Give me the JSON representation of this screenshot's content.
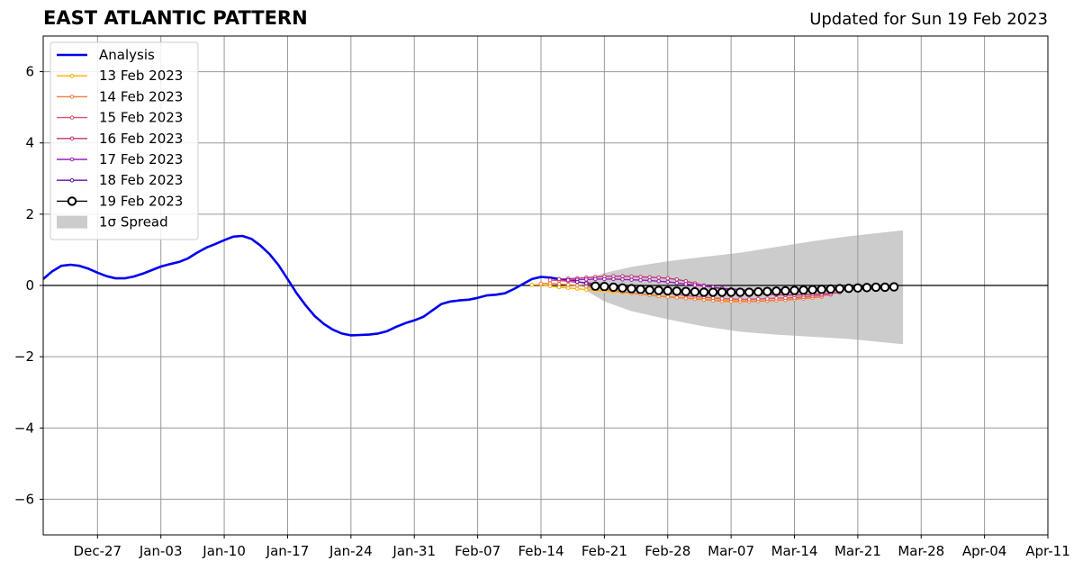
{
  "title": "EAST ATLANTIC PATTERN",
  "subtitle": "Updated for Sun 19 Feb 2023",
  "chart_data": {
    "type": "line",
    "xaxis": {
      "tick_labels": [
        "Dec-27",
        "Jan-03",
        "Jan-10",
        "Jan-17",
        "Jan-24",
        "Jan-31",
        "Feb-07",
        "Feb-14",
        "Feb-21",
        "Feb-28",
        "Mar-07",
        "Mar-14",
        "Mar-21",
        "Mar-28",
        "Apr-04",
        "Apr-11"
      ],
      "range": [
        "2022-12-21",
        "2023-04-11"
      ]
    },
    "yaxis": {
      "tick_labels": [
        "−6",
        "−4",
        "−2",
        "0",
        "2",
        "4",
        "6"
      ],
      "tick_values": [
        -6,
        -4,
        -2,
        0,
        2,
        4,
        6
      ],
      "range": [
        -7,
        7
      ]
    },
    "grid": true,
    "zero_line": true,
    "legend_position": "top-left",
    "series": [
      {
        "name": "Analysis",
        "color": "#0000ee",
        "style": "thick-line",
        "marker": "none",
        "points": [
          [
            "2022-12-21",
            0.18
          ],
          [
            "2022-12-22",
            0.4
          ],
          [
            "2022-12-23",
            0.55
          ],
          [
            "2022-12-24",
            0.58
          ],
          [
            "2022-12-25",
            0.55
          ],
          [
            "2022-12-26",
            0.47
          ],
          [
            "2022-12-27",
            0.36
          ],
          [
            "2022-12-28",
            0.26
          ],
          [
            "2022-12-29",
            0.2
          ],
          [
            "2022-12-30",
            0.2
          ],
          [
            "2022-12-31",
            0.25
          ],
          [
            "2023-01-01",
            0.33
          ],
          [
            "2023-01-02",
            0.43
          ],
          [
            "2023-01-03",
            0.53
          ],
          [
            "2023-01-04",
            0.6
          ],
          [
            "2023-01-05",
            0.66
          ],
          [
            "2023-01-06",
            0.76
          ],
          [
            "2023-01-07",
            0.92
          ],
          [
            "2023-01-08",
            1.06
          ],
          [
            "2023-01-09",
            1.16
          ],
          [
            "2023-01-10",
            1.27
          ],
          [
            "2023-01-11",
            1.37
          ],
          [
            "2023-01-12",
            1.39
          ],
          [
            "2023-01-13",
            1.31
          ],
          [
            "2023-01-14",
            1.12
          ],
          [
            "2023-01-15",
            0.88
          ],
          [
            "2023-01-16",
            0.57
          ],
          [
            "2023-01-17",
            0.18
          ],
          [
            "2023-01-18",
            -0.22
          ],
          [
            "2023-01-19",
            -0.56
          ],
          [
            "2023-01-20",
            -0.86
          ],
          [
            "2023-01-21",
            -1.08
          ],
          [
            "2023-01-22",
            -1.24
          ],
          [
            "2023-01-23",
            -1.35
          ],
          [
            "2023-01-24",
            -1.4
          ],
          [
            "2023-01-25",
            -1.39
          ],
          [
            "2023-01-26",
            -1.38
          ],
          [
            "2023-01-27",
            -1.35
          ],
          [
            "2023-01-28",
            -1.28
          ],
          [
            "2023-01-29",
            -1.16
          ],
          [
            "2023-01-30",
            -1.06
          ],
          [
            "2023-01-31",
            -0.98
          ],
          [
            "2023-02-01",
            -0.88
          ],
          [
            "2023-02-02",
            -0.7
          ],
          [
            "2023-02-03",
            -0.52
          ],
          [
            "2023-02-04",
            -0.45
          ],
          [
            "2023-02-05",
            -0.42
          ],
          [
            "2023-02-06",
            -0.4
          ],
          [
            "2023-02-07",
            -0.35
          ],
          [
            "2023-02-08",
            -0.28
          ],
          [
            "2023-02-09",
            -0.26
          ],
          [
            "2023-02-10",
            -0.22
          ],
          [
            "2023-02-11",
            -0.1
          ],
          [
            "2023-02-12",
            0.04
          ],
          [
            "2023-02-13",
            0.18
          ],
          [
            "2023-02-14",
            0.24
          ],
          [
            "2023-02-15",
            0.22
          ],
          [
            "2023-02-16",
            0.18
          ],
          [
            "2023-02-17",
            0.14
          ],
          [
            "2023-02-18",
            0.1
          ]
        ]
      },
      {
        "name": "13 Feb 2023",
        "color": "#ffb000",
        "style": "thin-line",
        "marker": "small-dot",
        "start": "2023-02-13",
        "values": [
          0.02,
          0.02,
          -0.02,
          -0.05,
          -0.07,
          -0.09,
          -0.12,
          -0.14,
          -0.16,
          -0.18,
          -0.2,
          -0.22,
          -0.24,
          -0.27,
          -0.29,
          -0.31,
          -0.33,
          -0.35,
          -0.37,
          -0.38,
          -0.4,
          -0.41,
          -0.42,
          -0.43,
          -0.44,
          -0.44,
          -0.43,
          -0.42,
          -0.4,
          -0.38,
          -0.36,
          -0.33
        ]
      },
      {
        "name": "14 Feb 2023",
        "color": "#f07f3a",
        "style": "thin-line",
        "marker": "small-dot",
        "start": "2023-02-14",
        "values": [
          0.05,
          0.06,
          0.04,
          0.02,
          0.0,
          -0.03,
          -0.06,
          -0.1,
          -0.14,
          -0.18,
          -0.21,
          -0.24,
          -0.27,
          -0.3,
          -0.32,
          -0.34,
          -0.36,
          -0.38,
          -0.4,
          -0.42,
          -0.44,
          -0.45,
          -0.45,
          -0.45,
          -0.44,
          -0.43,
          -0.42,
          -0.41,
          -0.39,
          -0.37,
          -0.35,
          -0.32
        ]
      },
      {
        "name": "15 Feb 2023",
        "color": "#e0506a",
        "style": "thin-line",
        "marker": "small-dot",
        "start": "2023-02-15",
        "values": [
          0.15,
          0.14,
          0.12,
          0.1,
          0.08,
          0.05,
          0.02,
          -0.02,
          -0.06,
          -0.1,
          -0.13,
          -0.16,
          -0.19,
          -0.22,
          -0.25,
          -0.28,
          -0.31,
          -0.33,
          -0.35,
          -0.37,
          -0.38,
          -0.39,
          -0.39,
          -0.38,
          -0.37,
          -0.36,
          -0.35,
          -0.34,
          -0.32,
          -0.3,
          -0.28,
          -0.26
        ]
      },
      {
        "name": "16 Feb 2023",
        "color": "#c0347a",
        "style": "thin-line",
        "marker": "small-dot",
        "start": "2023-02-16",
        "values": [
          0.18,
          0.19,
          0.2,
          0.22,
          0.24,
          0.25,
          0.26,
          0.26,
          0.25,
          0.24,
          0.23,
          0.22,
          0.2,
          0.17,
          0.12,
          0.06,
          0.0,
          -0.05,
          -0.1,
          -0.14,
          -0.18,
          -0.21,
          -0.23,
          -0.25,
          -0.26,
          -0.27,
          -0.27,
          -0.26,
          -0.25,
          -0.24,
          -0.22,
          -0.2
        ]
      },
      {
        "name": "17 Feb 2023",
        "color": "#9a1fb5",
        "style": "thin-line",
        "marker": "small-dot",
        "start": "2023-02-17",
        "values": [
          0.15,
          0.16,
          0.17,
          0.18,
          0.18,
          0.18,
          0.17,
          0.16,
          0.15,
          0.14,
          0.12,
          0.1,
          0.07,
          0.04,
          0.01,
          -0.02,
          -0.05,
          -0.08,
          -0.1,
          -0.12,
          -0.14,
          -0.15,
          -0.16,
          -0.17,
          -0.17,
          -0.16,
          -0.15,
          -0.14,
          -0.13,
          -0.12,
          -0.1,
          -0.08
        ]
      },
      {
        "name": "18 Feb 2023",
        "color": "#5a12a8",
        "style": "thin-line",
        "marker": "small-dot",
        "start": "2023-02-18",
        "values": [
          0.1,
          0.06,
          0.02,
          0.0,
          -0.02,
          -0.04,
          -0.06,
          -0.08,
          -0.1,
          -0.12,
          -0.14,
          -0.15,
          -0.16,
          -0.17,
          -0.18,
          -0.18,
          -0.18,
          -0.18,
          -0.17,
          -0.17,
          -0.16,
          -0.15,
          -0.14,
          -0.13,
          -0.12,
          -0.11,
          -0.1,
          -0.09,
          -0.08,
          -0.07,
          -0.06,
          -0.05
        ]
      },
      {
        "name": "19 Feb 2023",
        "color": "#000000",
        "style": "thin-line",
        "marker": "open-circle",
        "start": "2023-02-20",
        "values": [
          -0.02,
          -0.03,
          -0.05,
          -0.07,
          -0.09,
          -0.11,
          -0.13,
          -0.14,
          -0.15,
          -0.16,
          -0.17,
          -0.18,
          -0.19,
          -0.19,
          -0.19,
          -0.19,
          -0.19,
          -0.19,
          -0.18,
          -0.17,
          -0.16,
          -0.15,
          -0.14,
          -0.13,
          -0.12,
          -0.11,
          -0.1,
          -0.09,
          -0.08,
          -0.07,
          -0.06,
          -0.05,
          -0.05,
          -0.04
        ]
      }
    ],
    "spread": {
      "name": "1σ Spread",
      "symbol": "σ",
      "color": "#cccccc",
      "points": [
        [
          "2023-02-19",
          -0.15,
          0.15
        ],
        [
          "2023-02-21",
          -0.45,
          0.35
        ],
        [
          "2023-02-24",
          -0.72,
          0.52
        ],
        [
          "2023-02-28",
          -0.95,
          0.68
        ],
        [
          "2023-03-04",
          -1.15,
          0.8
        ],
        [
          "2023-03-08",
          -1.3,
          0.92
        ],
        [
          "2023-03-12",
          -1.38,
          1.08
        ],
        [
          "2023-03-16",
          -1.44,
          1.24
        ],
        [
          "2023-03-20",
          -1.5,
          1.38
        ],
        [
          "2023-03-26",
          -1.65,
          1.55
        ]
      ]
    }
  }
}
